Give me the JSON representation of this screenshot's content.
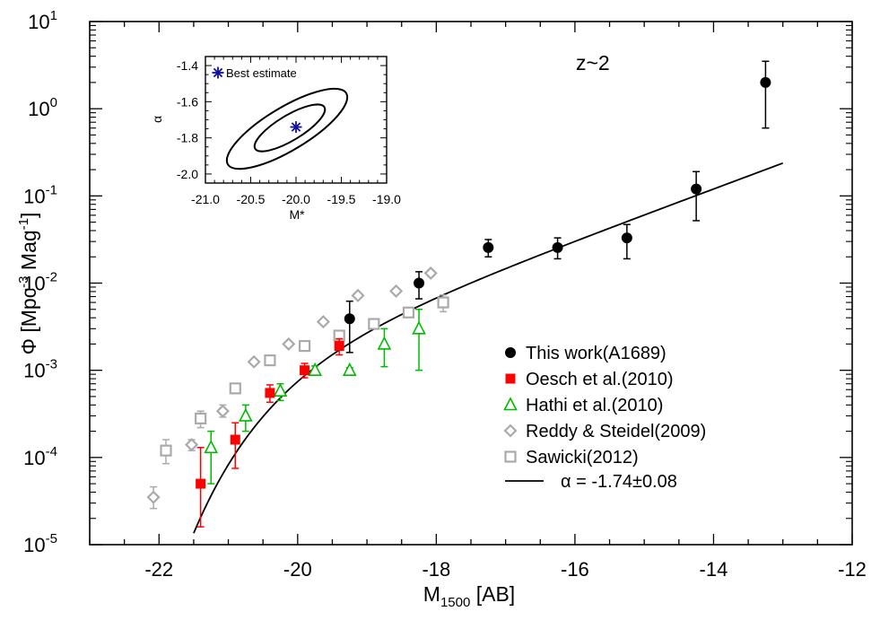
{
  "chart_data": {
    "type": "scatter",
    "annotation": "z~2",
    "xlabel_main": "M",
    "xlabel_sub": "1500",
    "xlabel_rest": " [AB]",
    "ylabel_pre": "Φ [Mpc",
    "ylabel_sup1": "-3",
    "ylabel_mid": " Mag",
    "ylabel_sup2": "-1",
    "ylabel_post": "]",
    "xlim": [
      -23,
      -12
    ],
    "ylim_log10": [
      -5,
      1
    ],
    "y_scale": "log",
    "x_ticks": [
      -22,
      -20,
      -18,
      -16,
      -14,
      -12
    ],
    "x_tick_labels": [
      "-22",
      "-20",
      "-18",
      "-16",
      "-14",
      "-12"
    ],
    "y_tick_exponents": [
      -5,
      -4,
      -3,
      -2,
      -1,
      0,
      1
    ],
    "y_tick_base": "10",
    "y_tick_exp_labels": [
      "-5",
      "-4",
      "-3",
      "-2",
      "-1",
      "0",
      "1"
    ],
    "legend_position": "bottom-right",
    "series": [
      {
        "name": "This work(A1689)",
        "marker": "filled-circle",
        "color": "#000000",
        "points": [
          {
            "x": -19.25,
            "y": 0.0039,
            "lo": 0.0016,
            "hi": 0.0062
          },
          {
            "x": -18.25,
            "y": 0.01,
            "lo": 0.0066,
            "hi": 0.0135
          },
          {
            "x": -17.25,
            "y": 0.0256,
            "lo": 0.02,
            "hi": 0.0316
          },
          {
            "x": -16.25,
            "y": 0.0256,
            "lo": 0.019,
            "hi": 0.033
          },
          {
            "x": -15.25,
            "y": 0.033,
            "lo": 0.019,
            "hi": 0.047
          },
          {
            "x": -14.25,
            "y": 0.12,
            "lo": 0.052,
            "hi": 0.19
          },
          {
            "x": -13.25,
            "y": 2.0,
            "lo": 0.6,
            "hi": 3.5
          }
        ]
      },
      {
        "name": "Oesch et al.(2010)",
        "marker": "filled-square",
        "color": "#ff0000",
        "points": [
          {
            "x": -21.4,
            "y": 5e-05,
            "lo": 1.6e-05,
            "hi": 0.00013
          },
          {
            "x": -20.9,
            "y": 0.00016,
            "lo": 7.5e-05,
            "hi": 0.00025
          },
          {
            "x": -20.4,
            "y": 0.00055,
            "lo": 0.00043,
            "hi": 0.00068
          },
          {
            "x": -19.9,
            "y": 0.001,
            "lo": 0.00082,
            "hi": 0.0012
          },
          {
            "x": -19.4,
            "y": 0.0019,
            "lo": 0.0015,
            "hi": 0.0023
          }
        ]
      },
      {
        "name": "Hathi et al.(2010)",
        "marker": "open-triangle",
        "color": "#00bb00",
        "points": [
          {
            "x": -21.25,
            "y": 0.00013,
            "lo": 5e-05,
            "hi": 0.0002
          },
          {
            "x": -20.75,
            "y": 0.0003,
            "lo": 0.0002,
            "hi": 0.0004
          },
          {
            "x": -20.25,
            "y": 0.00058,
            "lo": 0.00045,
            "hi": 0.0007
          },
          {
            "x": -19.75,
            "y": 0.001,
            "lo": 0.00088,
            "hi": 0.00112
          },
          {
            "x": -19.25,
            "y": 0.001,
            "lo": 0.00093,
            "hi": 0.00107
          },
          {
            "x": -18.75,
            "y": 0.002,
            "lo": 0.0011,
            "hi": 0.003
          },
          {
            "x": -18.25,
            "y": 0.003,
            "lo": 0.001,
            "hi": 0.005
          }
        ]
      },
      {
        "name": "Reddy & Steidel(2009)",
        "marker": "open-diamond",
        "color": "#aaaaaa",
        "points": [
          {
            "x": -22.08,
            "y": 3.5e-05,
            "lo": 2.6e-05,
            "hi": 4.6e-05
          },
          {
            "x": -21.53,
            "y": 0.00014,
            "lo": 0.00012,
            "hi": 0.00016
          },
          {
            "x": -21.08,
            "y": 0.00034,
            "lo": 0.00029,
            "hi": 0.0004
          },
          {
            "x": -20.63,
            "y": 0.00125,
            "lo": 0.00118,
            "hi": 0.00132
          },
          {
            "x": -20.13,
            "y": 0.002,
            "lo": 0.0019,
            "hi": 0.0021
          },
          {
            "x": -19.63,
            "y": 0.0036,
            "lo": 0.0034,
            "hi": 0.0038
          },
          {
            "x": -19.13,
            "y": 0.0072,
            "lo": 0.0068,
            "hi": 0.0076
          },
          {
            "x": -18.58,
            "y": 0.0081,
            "lo": 0.0076,
            "hi": 0.0086
          },
          {
            "x": -18.08,
            "y": 0.013,
            "lo": 0.012,
            "hi": 0.014
          }
        ]
      },
      {
        "name": "Sawicki(2012)",
        "marker": "open-square",
        "color": "#aaaaaa",
        "points": [
          {
            "x": -21.9,
            "y": 0.00012,
            "lo": 8.5e-05,
            "hi": 0.00016
          },
          {
            "x": -21.4,
            "y": 0.00028,
            "lo": 0.00022,
            "hi": 0.00034
          },
          {
            "x": -20.9,
            "y": 0.00062,
            "lo": 0.00054,
            "hi": 0.0007
          },
          {
            "x": -20.4,
            "y": 0.0013,
            "lo": 0.00118,
            "hi": 0.00142
          },
          {
            "x": -19.9,
            "y": 0.0019,
            "lo": 0.00175,
            "hi": 0.00205
          },
          {
            "x": -19.4,
            "y": 0.0025,
            "lo": 0.00228,
            "hi": 0.00272
          },
          {
            "x": -18.9,
            "y": 0.0034,
            "lo": 0.0031,
            "hi": 0.0037
          },
          {
            "x": -18.4,
            "y": 0.0046,
            "lo": 0.0041,
            "hi": 0.0051
          },
          {
            "x": -17.9,
            "y": 0.006,
            "lo": 0.0047,
            "hi": 0.0073
          }
        ]
      }
    ],
    "fit": {
      "name_prefix": "α = -1.74",
      "name_pm": "±",
      "name_suffix": "0.08",
      "color": "#000000",
      "schechter": {
        "phi_star": 0.00219,
        "m_star": -20.0,
        "alpha": -1.74
      },
      "x_range": [
        -21.5,
        -13.0
      ]
    },
    "inset": {
      "xlabel": "M*",
      "ylabel": "α",
      "xlim": [
        -21.0,
        -19.0
      ],
      "ylim": [
        -2.05,
        -1.35
      ],
      "x_ticks": [
        -21.0,
        -20.5,
        -20.0,
        -19.5,
        -19.0
      ],
      "x_tick_labels": [
        "-21.0",
        "-20.5",
        "-20.0",
        "-19.5",
        "-19.0"
      ],
      "y_ticks": [
        -2.0,
        -1.8,
        -1.6,
        -1.4
      ],
      "y_tick_labels": [
        "-2.0",
        "-1.8",
        "-1.6",
        "-1.4"
      ],
      "best_estimate_label": "Best estimate",
      "best_estimate": {
        "x": -20.0,
        "y": -1.74
      },
      "star_color": "#1010a0"
    }
  }
}
